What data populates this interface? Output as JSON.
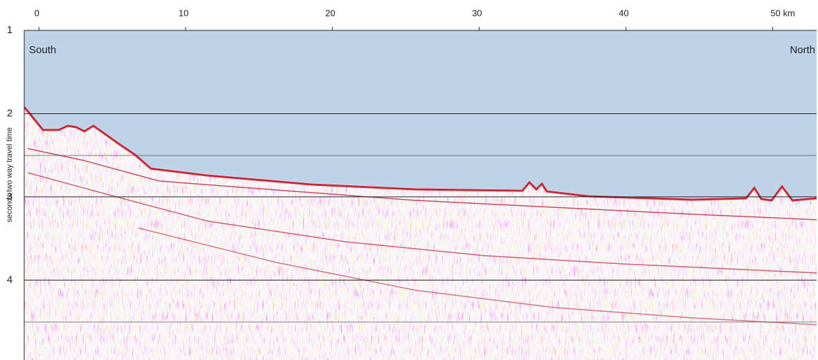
{
  "chart_data": {
    "type": "image",
    "ylabel": "seconds  two way  travel time",
    "annotations": [
      "South",
      "North"
    ],
    "xlim": [
      -1,
      53
    ],
    "xticks": [
      0,
      10,
      20,
      30,
      40,
      {
        "value": 50,
        "label": "50 km"
      }
    ],
    "ylim": [
      1,
      4.96
    ],
    "yticks": [
      1,
      2,
      3,
      4
    ],
    "grid": true
  }
}
